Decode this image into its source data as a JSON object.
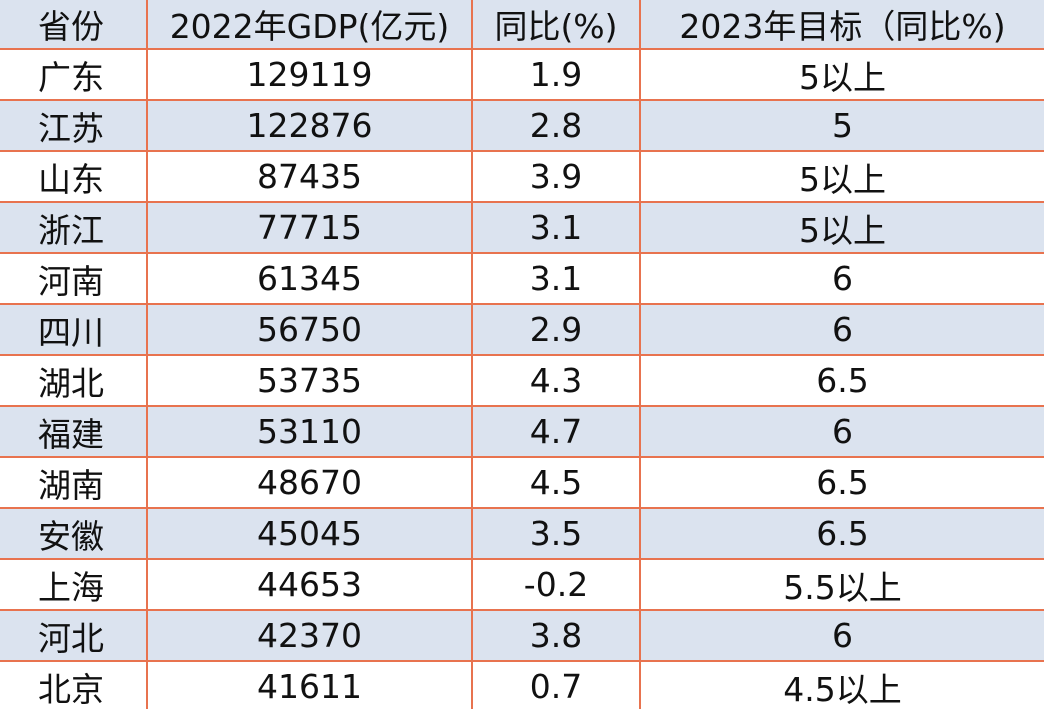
{
  "table": {
    "header": [
      "省份",
      "2022年GDP(亿元)",
      "同比(%)",
      "2023年目标（同比%)"
    ],
    "rows": [
      [
        "广东",
        "129119",
        "1.9",
        "5以上"
      ],
      [
        "江苏",
        "122876",
        "2.8",
        "5"
      ],
      [
        "山东",
        "87435",
        "3.9",
        "5以上"
      ],
      [
        "浙江",
        "77715",
        "3.1",
        "5以上"
      ],
      [
        "河南",
        "61345",
        "3.1",
        "6"
      ],
      [
        "四川",
        "56750",
        "2.9",
        "6"
      ],
      [
        "湖北",
        "53735",
        "4.3",
        "6.5"
      ],
      [
        "福建",
        "53110",
        "4.7",
        "6"
      ],
      [
        "湖南",
        "48670",
        "4.5",
        "6.5"
      ],
      [
        "安徽",
        "45045",
        "3.5",
        "6.5"
      ],
      [
        "上海",
        "44653",
        "-0.2",
        "5.5以上"
      ],
      [
        "河北",
        "42370",
        "3.8",
        "6"
      ],
      [
        "北京",
        "41611",
        "0.7",
        "4.5以上"
      ]
    ]
  }
}
